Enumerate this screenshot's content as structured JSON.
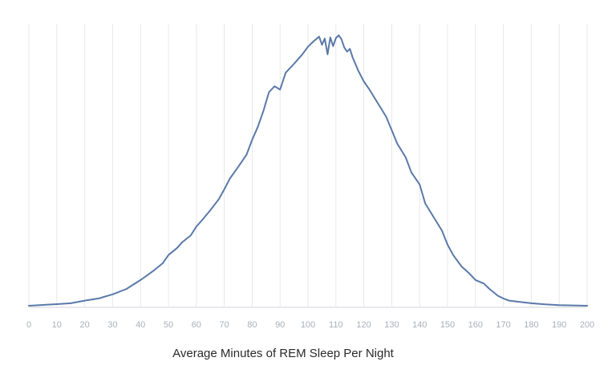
{
  "chart_data": {
    "type": "line",
    "xlabel": "Average Minutes of REM Sleep Per Night",
    "ylabel": "",
    "title": "",
    "grid": "vertical",
    "xlim": [
      0,
      200
    ],
    "ylim": [
      0,
      1
    ],
    "x_ticks": [
      "0",
      "10",
      "20",
      "30",
      "40",
      "50",
      "60",
      "70",
      "80",
      "90",
      "100",
      "110",
      "120",
      "130",
      "140",
      "150",
      "160",
      "170",
      "180",
      "190",
      "200"
    ],
    "colors": {
      "line": "#5a79a9",
      "grid": "#e6e8eb",
      "axis": "#cfd3d8",
      "tick": "#a9b0b8"
    },
    "series": [
      {
        "x": [
          0,
          5,
          10,
          15,
          20,
          25,
          30,
          35,
          40,
          42,
          45,
          48,
          50,
          53,
          55,
          58,
          60,
          62,
          65,
          68,
          70,
          72,
          75,
          78,
          80,
          82,
          84,
          86,
          88,
          90,
          92,
          95,
          98,
          100,
          102,
          104,
          105,
          106,
          107,
          108,
          109,
          110,
          111,
          112,
          113,
          114,
          115,
          116,
          118,
          120,
          122,
          125,
          128,
          130,
          132,
          135,
          137,
          140,
          142,
          145,
          148,
          150,
          152,
          155,
          158,
          160,
          163,
          165,
          168,
          170,
          172,
          175,
          180,
          185,
          190,
          195,
          200
        ],
        "values": [
          0.003,
          0.006,
          0.009,
          0.012,
          0.022,
          0.03,
          0.045,
          0.065,
          0.098,
          0.112,
          0.135,
          0.16,
          0.19,
          0.215,
          0.238,
          0.262,
          0.295,
          0.318,
          0.355,
          0.395,
          0.432,
          0.472,
          0.515,
          0.56,
          0.615,
          0.662,
          0.72,
          0.79,
          0.812,
          0.8,
          0.862,
          0.895,
          0.93,
          0.958,
          0.978,
          0.995,
          0.965,
          0.988,
          0.93,
          0.992,
          0.96,
          0.99,
          1.0,
          0.985,
          0.955,
          0.94,
          0.95,
          0.918,
          0.87,
          0.83,
          0.8,
          0.75,
          0.7,
          0.65,
          0.6,
          0.55,
          0.495,
          0.45,
          0.38,
          0.33,
          0.28,
          0.228,
          0.19,
          0.148,
          0.12,
          0.098,
          0.085,
          0.065,
          0.04,
          0.03,
          0.022,
          0.018,
          0.012,
          0.008,
          0.005,
          0.004,
          0.003
        ]
      }
    ]
  }
}
